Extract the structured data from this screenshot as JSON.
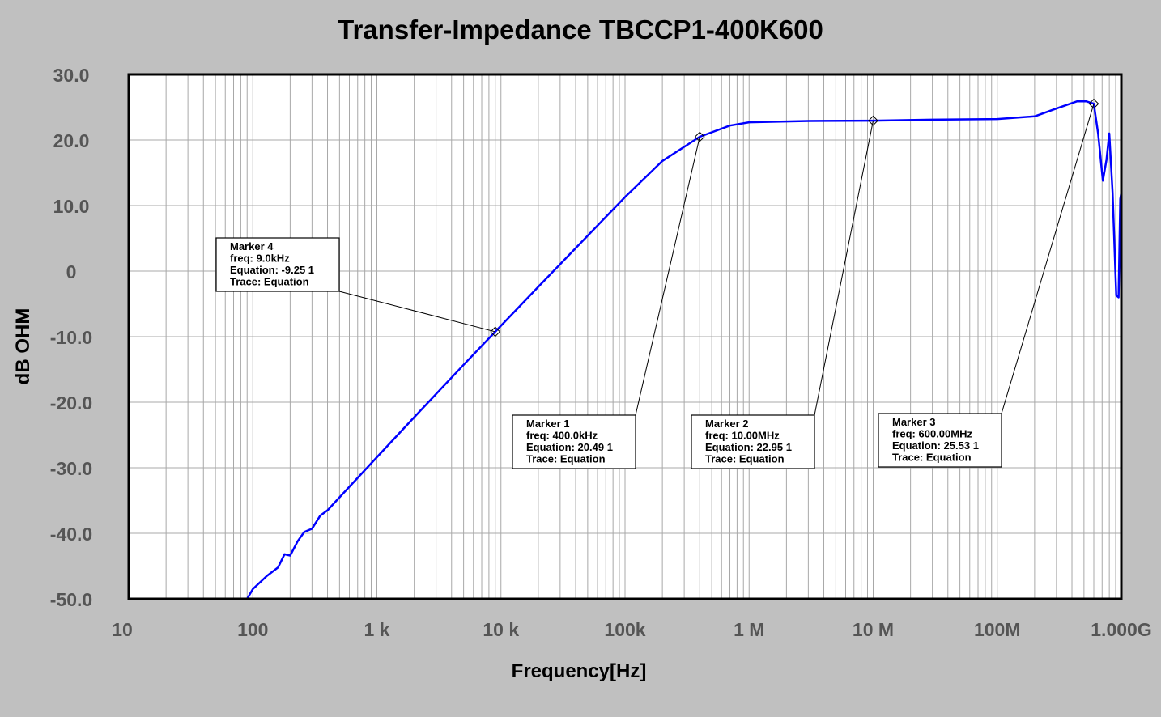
{
  "chart_data": {
    "type": "line",
    "title": "Transfer-Impedance TBCCP1-400K600",
    "xlabel": "Frequency[Hz]",
    "ylabel": "dB OHM",
    "xscale": "log",
    "xlim": [
      10,
      1000000000
    ],
    "ylim": [
      -50,
      30
    ],
    "grid": true,
    "x_tick_labels": [
      "10",
      "100",
      "1  k",
      "10 k",
      "100k",
      "1  M",
      "10 M",
      "100M",
      "1.000G"
    ],
    "y_tick_values": [
      30,
      20,
      10,
      0,
      -10,
      -20,
      -30,
      -40,
      -50
    ],
    "y_tick_labels": [
      "30.0",
      "20.0",
      "10.0",
      "0",
      "-10.0",
      "-20.0",
      "-30.0",
      "-40.0",
      "-50.0"
    ],
    "series": [
      {
        "color": "#0000ff",
        "x": [
          90,
          100,
          130,
          160,
          180,
          200,
          230,
          260,
          300,
          350,
          400,
          500,
          1000,
          2000,
          5000,
          9000,
          20000,
          50000,
          100000,
          200000,
          400000,
          700000,
          1000000,
          3000000,
          10000000,
          30000000,
          100000000,
          200000000,
          300000000,
          440000000,
          520000000,
          600000000,
          650000000,
          710000000,
          760000000,
          800000000,
          850000000,
          910000000,
          950000000,
          980000000,
          1000000000
        ],
        "y": [
          -50,
          -48.5,
          -46.5,
          -45.2,
          -43.2,
          -43.4,
          -41.2,
          -39.8,
          -39.3,
          -37.3,
          -36.5,
          -34.5,
          -28.4,
          -22.3,
          -14.3,
          -9.25,
          -2.4,
          5.4,
          11.3,
          16.8,
          20.49,
          22.2,
          22.7,
          22.9,
          22.95,
          23.1,
          23.2,
          23.6,
          24.8,
          25.9,
          25.9,
          25.53,
          21,
          13.8,
          17,
          21,
          12,
          -3.7,
          -4,
          11,
          12
        ]
      }
    ],
    "markers": [
      {
        "title": "Marker 4",
        "freq_label": "freq: 9.0kHz",
        "value_label": "Equation: -9.25 1",
        "trace_label": "Trace: Equation",
        "x": 9000,
        "y": -9.25
      },
      {
        "title": "Marker 1",
        "freq_label": "freq: 400.0kHz",
        "value_label": "Equation: 20.49 1",
        "trace_label": "Trace: Equation",
        "x": 400000,
        "y": 20.49
      },
      {
        "title": "Marker 2",
        "freq_label": "freq: 10.00MHz",
        "value_label": "Equation: 22.95 1",
        "trace_label": "Trace: Equation",
        "x": 10000000,
        "y": 22.95
      },
      {
        "title": "Marker 3",
        "freq_label": "freq: 600.00MHz",
        "value_label": "Equation: 25.53 1",
        "trace_label": "Trace: Equation",
        "x": 600000000,
        "y": 25.53
      }
    ]
  }
}
